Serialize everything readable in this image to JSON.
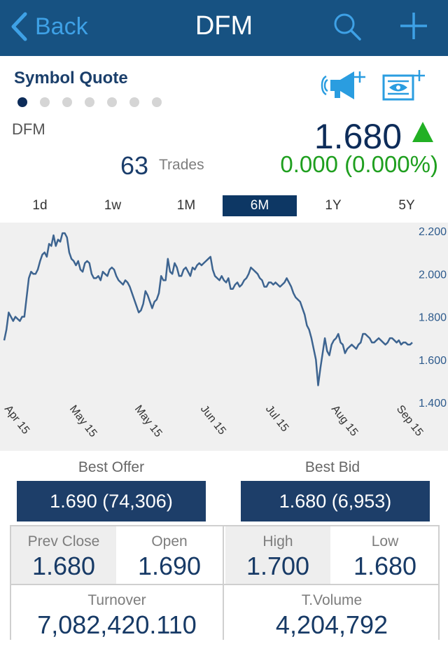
{
  "navbar": {
    "back_label": "Back",
    "title": "DFM",
    "search_icon": "search-icon",
    "add_icon": "plus-icon",
    "background": "#175282",
    "accent": "#3ea1e6"
  },
  "quote": {
    "section_title": "Symbol Quote",
    "page_count": 7,
    "active_page": 1,
    "alert_icon": "megaphone-plus-icon",
    "watchlist_icon": "news-eye-plus-icon",
    "symbol": "DFM",
    "last_price": "1.680",
    "direction": "up",
    "trades_count": "63",
    "trades_label": "Trades",
    "change": "0.000 (0.000%)",
    "change_color": "#1f9f1f"
  },
  "ranges": {
    "items": [
      "1d",
      "1w",
      "1M",
      "6M",
      "1Y",
      "5Y"
    ],
    "selected": "6M"
  },
  "chart_data": {
    "type": "line",
    "title": "",
    "xlabel": "",
    "ylabel": "",
    "y_ticks": [
      "2.200",
      "2.000",
      "1.800",
      "1.600",
      "1.400"
    ],
    "ylim": [
      1.4,
      2.2
    ],
    "x_ticks": [
      "Apr 15",
      "May 15",
      "May 15",
      "Jun 15",
      "Jul 15",
      "Aug 15",
      "Sep 15"
    ],
    "grid": false,
    "series": [
      {
        "color": "#3d6490",
        "values": [
          1.69,
          1.74,
          1.82,
          1.8,
          1.78,
          1.8,
          1.79,
          1.78,
          1.8,
          1.8,
          1.89,
          1.98,
          2.01,
          2.0,
          2.0,
          2.02,
          2.06,
          2.09,
          2.1,
          2.08,
          2.14,
          2.13,
          2.18,
          2.13,
          2.16,
          2.15,
          2.19,
          2.19,
          2.17,
          2.1,
          2.07,
          2.06,
          2.04,
          2.06,
          2.02,
          2.01,
          2.05,
          2.06,
          2.05,
          2.0,
          1.98,
          1.98,
          1.99,
          1.97,
          2.01,
          2.0,
          1.99,
          2.02,
          2.03,
          2.02,
          1.99,
          1.97,
          1.96,
          1.95,
          1.97,
          1.96,
          1.94,
          1.91,
          1.88,
          1.85,
          1.82,
          1.83,
          1.86,
          1.92,
          1.9,
          1.87,
          1.84,
          1.87,
          1.88,
          1.91,
          1.99,
          1.97,
          1.97,
          2.07,
          2.01,
          2.0,
          2.05,
          2.03,
          1.99,
          1.99,
          2.02,
          2.03,
          2.01,
          1.99,
          2.03,
          2.02,
          2.04,
          2.05,
          2.04,
          2.05,
          2.06,
          2.07,
          2.08,
          2.02,
          1.99,
          1.98,
          1.97,
          1.99,
          1.97,
          1.96,
          1.98,
          1.93,
          1.93,
          1.95,
          1.96,
          1.94,
          1.95,
          1.97,
          1.98,
          2.0,
          2.03,
          2.02,
          2.01,
          2.0,
          1.98,
          1.97,
          1.94,
          1.94,
          1.96,
          1.96,
          1.95,
          1.96,
          1.95,
          1.94,
          1.95,
          1.96,
          1.98,
          1.96,
          1.94,
          1.91,
          1.89,
          1.88,
          1.87,
          1.84,
          1.81,
          1.76,
          1.74,
          1.7,
          1.65,
          1.6,
          1.48,
          1.56,
          1.63,
          1.7,
          1.64,
          1.62,
          1.67,
          1.69,
          1.7,
          1.72,
          1.68,
          1.67,
          1.63,
          1.65,
          1.66,
          1.67,
          1.66,
          1.65,
          1.67,
          1.68,
          1.72,
          1.72,
          1.71,
          1.7,
          1.68,
          1.68,
          1.69,
          1.7,
          1.69,
          1.68,
          1.67,
          1.68,
          1.7,
          1.7,
          1.69,
          1.68,
          1.69,
          1.67,
          1.68,
          1.68,
          1.67,
          1.67,
          1.68
        ]
      }
    ]
  },
  "bids": {
    "best_offer_label": "Best Offer",
    "best_offer_value": "1.690 (74,306)",
    "best_bid_label": "Best Bid",
    "best_bid_value": "1.680 (6,953)"
  },
  "stats": {
    "prev_close_label": "Prev Close",
    "prev_close_value": "1.680",
    "open_label": "Open",
    "open_value": "1.690",
    "high_label": "High",
    "high_value": "1.700",
    "low_label": "Low",
    "low_value": "1.680",
    "turnover_label": "Turnover",
    "turnover_value": "7,082,420.110",
    "tvolume_label": "T.Volume",
    "tvolume_value": "4,204,792"
  }
}
